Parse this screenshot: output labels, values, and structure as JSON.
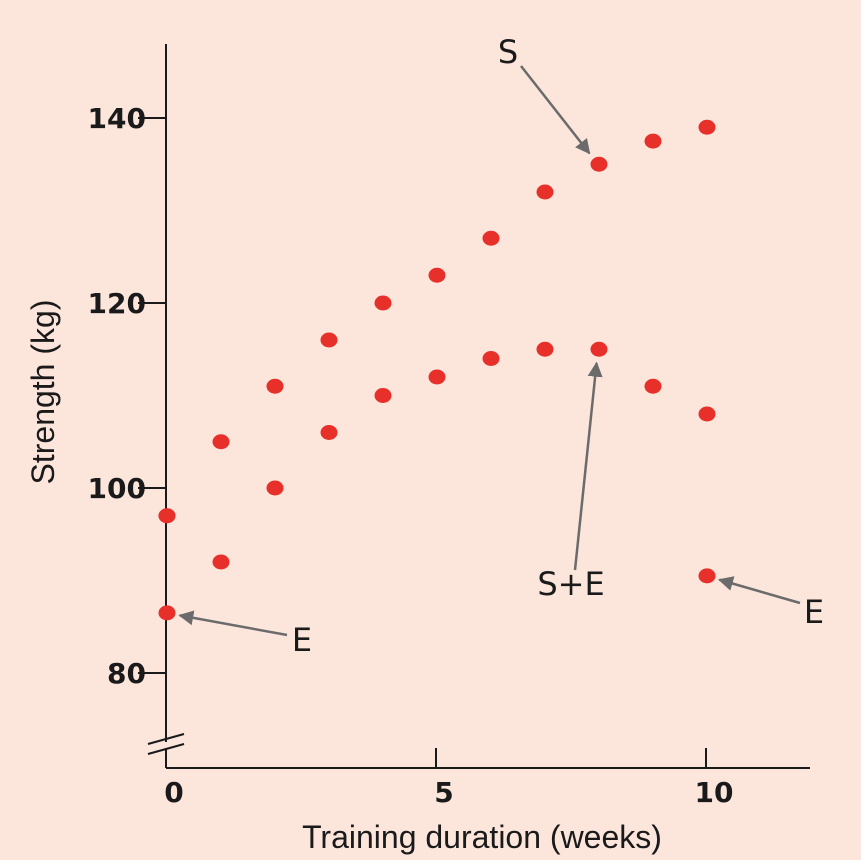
{
  "chart_data": {
    "type": "scatter",
    "title": "",
    "xlabel": "Training duration (weeks)",
    "ylabel": "Strength (kg)",
    "xlim": [
      0,
      12
    ],
    "ylim": [
      72,
      148
    ],
    "x_ticks": [
      0,
      5,
      10
    ],
    "x_tick_labels": [
      "0",
      "5",
      "10"
    ],
    "y_ticks": [
      80,
      100,
      120,
      140
    ],
    "y_tick_labels": [
      "80",
      "100",
      "120",
      "140"
    ],
    "y_axis_break": true,
    "grid": false,
    "marker_color": "#e8302a",
    "series": [
      {
        "x": [
          0,
          1,
          2,
          3,
          4,
          5,
          6,
          7,
          8,
          9,
          10
        ],
        "y": [
          97,
          105,
          111,
          116,
          120,
          123,
          127,
          132,
          135,
          137.5,
          139
        ]
      },
      {
        "x": [
          0,
          1,
          2,
          3,
          4,
          5,
          6,
          7,
          8,
          9,
          10
        ],
        "y": [
          97,
          92,
          100,
          106,
          110,
          112,
          114,
          115,
          115,
          111,
          108
        ]
      },
      {
        "x": [
          0,
          10
        ],
        "y": [
          86.5,
          90.5
        ]
      }
    ],
    "annotations": [
      {
        "text": "S",
        "target": [
          8,
          135
        ]
      },
      {
        "text": "S+E",
        "target": [
          8,
          115
        ]
      },
      {
        "text": "E",
        "target": [
          0,
          86.5
        ]
      },
      {
        "text": "E",
        "target": [
          10,
          90.5
        ]
      }
    ]
  }
}
